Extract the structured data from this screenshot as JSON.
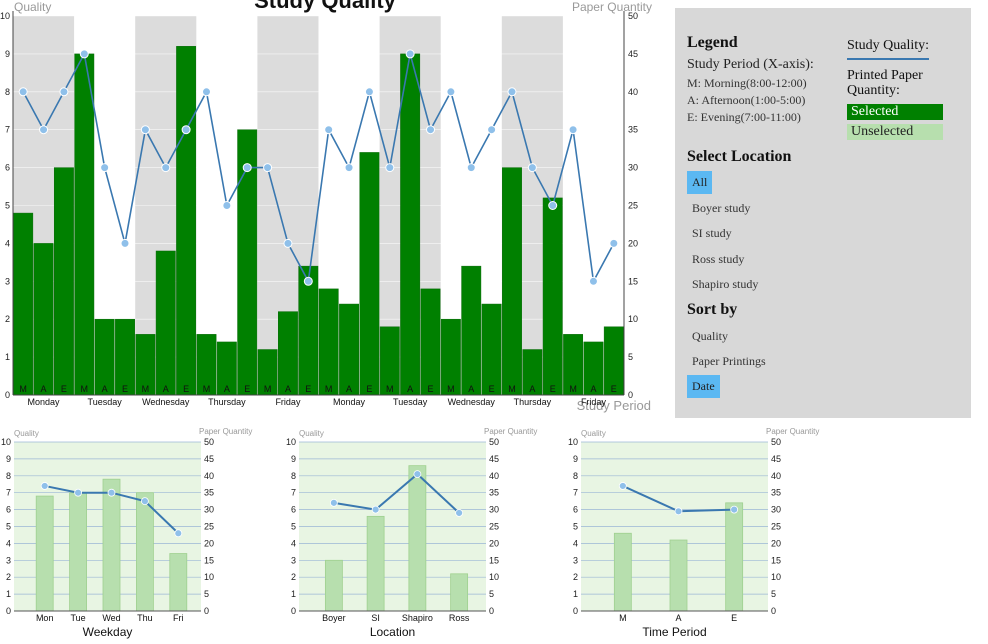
{
  "main": {
    "y_left_label": "Quality",
    "y_right_label": "Paper Quantity",
    "x_axis_label": "Study Period",
    "title": "Study Quality"
  },
  "legend": {
    "title": "Legend",
    "subtitle": "Study Period (X-axis):",
    "lines": [
      "M: Morning(8:00-12:00)",
      "A: Afternoon(1:00-5:00)",
      "E: Evening(7:00-11:00)"
    ],
    "study_quality_label": "Study Quality:",
    "paper_quantity_label": "Printed Paper Quantity:",
    "selected_label": "Selected",
    "unselected_label": "Unselected"
  },
  "select_location": {
    "title": "Select Location",
    "options": [
      "All",
      "Boyer study",
      "SI study",
      "Ross study",
      "Shapiro study"
    ],
    "active": "All"
  },
  "sort_by": {
    "title": "Sort by",
    "options": [
      "Quality",
      "Paper Printings",
      "Date"
    ],
    "active": "Date"
  },
  "colors": {
    "bar_selected": "#008000",
    "bar_unselected": "#b7dfae",
    "line": "#3a78b0",
    "point": "#8fc0ea",
    "band": "#dcdcdc",
    "small_bg": "#e8f5e3",
    "panel_bg": "#d8d8d8",
    "active_option": "#5bb8f2"
  },
  "chart_data": [
    {
      "type": "bar",
      "name_hint": "main",
      "ylim_left": [
        0,
        10
      ],
      "ylim_right": [
        0,
        50
      ],
      "yticks_left": [
        0,
        1,
        2,
        3,
        4,
        5,
        6,
        7,
        8,
        9,
        10
      ],
      "yticks_right": [
        0,
        5,
        10,
        15,
        20,
        25,
        30,
        35,
        40,
        45,
        50
      ],
      "periods": [
        "M",
        "A",
        "E",
        "M",
        "A",
        "E",
        "M",
        "A",
        "E",
        "M",
        "A",
        "E",
        "M",
        "A",
        "E",
        "M",
        "A",
        "E",
        "M",
        "A",
        "E",
        "M",
        "A",
        "E",
        "M",
        "A",
        "E",
        "M",
        "A",
        "E"
      ],
      "days": [
        "Monday",
        "Tuesday",
        "Wednesday",
        "Thursday",
        "Friday",
        "Monday",
        "Tuesday",
        "Wednesday",
        "Thursday",
        "Friday"
      ],
      "bar_paper_quantity": [
        24,
        20,
        30,
        45,
        10,
        10,
        8,
        19,
        46,
        8,
        7,
        35,
        6,
        11,
        17,
        14,
        12,
        32,
        9,
        45,
        14,
        10,
        17,
        12,
        30,
        6,
        26,
        8,
        7,
        9
      ],
      "line_quality": [
        8,
        7,
        8,
        9,
        6,
        4,
        7,
        6,
        7,
        8,
        5,
        6,
        6,
        4,
        3,
        7,
        6,
        8,
        6,
        9,
        7,
        8,
        6,
        7,
        8,
        6,
        5,
        7,
        3,
        4
      ]
    },
    {
      "type": "bar",
      "xlabel": "Weekday",
      "ylabel_left": "Quality",
      "ylabel_right": "Paper Quantity",
      "categories": [
        "Mon",
        "Tue",
        "Wed",
        "Thu",
        "Fri"
      ],
      "bar_paper_quantity": [
        34,
        35,
        39,
        35,
        17
      ],
      "line_quality": [
        7.4,
        7.0,
        7.0,
        6.5,
        4.6
      ],
      "ylim_left": [
        0,
        10
      ],
      "ylim_right": [
        0,
        50
      ]
    },
    {
      "type": "bar",
      "xlabel": "Location",
      "ylabel_left": "Quality",
      "ylabel_right": "Paper Quantity",
      "categories": [
        "Boyer",
        "SI",
        "Shapiro",
        "Ross"
      ],
      "bar_paper_quantity": [
        15,
        28,
        43,
        11
      ],
      "line_quality": [
        6.4,
        6.0,
        8.1,
        5.8
      ],
      "ylim_left": [
        0,
        10
      ],
      "ylim_right": [
        0,
        50
      ]
    },
    {
      "type": "bar",
      "xlabel": "Time Period",
      "ylabel_left": "Quality",
      "ylabel_right": "Paper Quantity",
      "categories": [
        "M",
        "A",
        "E"
      ],
      "bar_paper_quantity": [
        23,
        21,
        32
      ],
      "line_quality": [
        7.4,
        5.9,
        6.0
      ],
      "ylim_left": [
        0,
        10
      ],
      "ylim_right": [
        0,
        50
      ]
    }
  ]
}
